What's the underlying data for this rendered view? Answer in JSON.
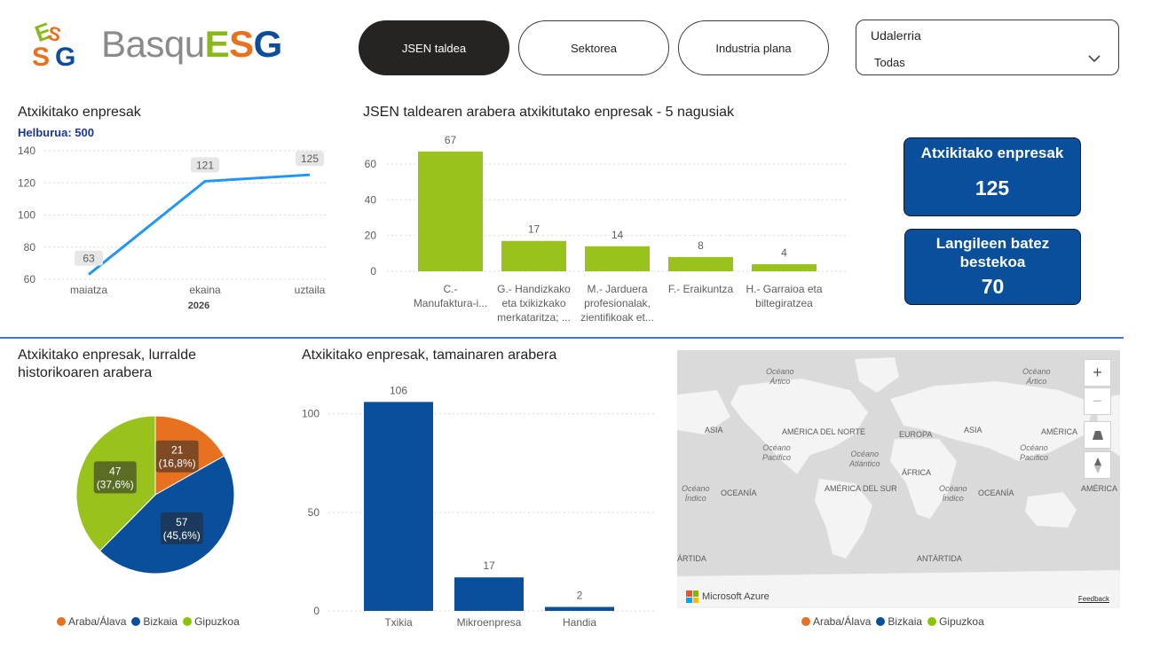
{
  "brand": {
    "logo_text_basqu": "Basqu",
    "logo_text_e": "E",
    "logo_text_s": "S",
    "logo_text_g": "G",
    "colors": {
      "green": "#8bb81f",
      "orange": "#e8711f",
      "blue": "#0d4d9c",
      "grey": "#8a8a8a"
    }
  },
  "nav": {
    "tabs": [
      {
        "label": "JSEN taldea",
        "active": true
      },
      {
        "label": "Sektorea",
        "active": false
      },
      {
        "label": "Industria plana",
        "active": false
      }
    ]
  },
  "slicer": {
    "title": "Udalerria",
    "value": "Todas",
    "icon": "chevron-down-icon"
  },
  "line_visual": {
    "title": "Atxikitako enpresak",
    "subtitle": "Helburua: 500"
  },
  "bar_visual": {
    "title": "JSEN taldearen arabera atxikitutako enpresak - 5 nagusiak"
  },
  "kpi": [
    {
      "title": "Atxikitako enpresak",
      "value": "125"
    },
    {
      "title_line1": "Langileen batez",
      "title_line2": "bestekoa",
      "value": "70"
    }
  ],
  "pie_visual": {
    "title_line1": "Atxikitako enpresak, lurralde",
    "title_line2": "historikoaren arabera"
  },
  "size_visual": {
    "title": "Atxikitako enpresak, tamainaren arabera"
  },
  "map": {
    "labels": {
      "ocean_artico_1": [
        "Océano",
        "Ártico"
      ],
      "ocean_artico_2": [
        "Océano",
        "Ártico"
      ],
      "asia_1": "ASIA",
      "america_norte": "AMÉRICA DEL NORTE",
      "europa": "EUROPA",
      "asia_2": "ASIA",
      "america_cut": "AMÉRICA",
      "ocean_pacifico_1": [
        "Océano",
        "Pacífico"
      ],
      "ocean_atlantico": [
        "Océano",
        "Atlántico"
      ],
      "ocean_pacifico_2": [
        "Océano",
        "Pacífico"
      ],
      "africa": "ÁFRICA",
      "ocean_indico_1": [
        "Océano",
        "Índico"
      ],
      "oceania_1": "OCEANÍA",
      "america_sur": "AMÉRICA DEL SUR",
      "ocean_indico_2": [
        "Océano",
        "Índico"
      ],
      "oceania_2": "OCEANÍA",
      "america_cut_2": "AMÉRICA",
      "antartida_1": "ÁRTIDA",
      "antartida_2": "ANTÁRTIDA"
    },
    "zoom_in": "+",
    "zoom_out": "−",
    "attribution": "Microsoft Azure",
    "feedback": "Feedback"
  },
  "legend": [
    {
      "label": "Araba/Álava",
      "color": "#e8711f"
    },
    {
      "label": "Bizkaia",
      "color": "#0a4f9c"
    },
    {
      "label": "Gipuzkoa",
      "color": "#8bc400"
    }
  ],
  "chart_data": [
    {
      "type": "line",
      "title": "Atxikitako enpresak",
      "subtitle": "Helburua: 500",
      "categories": [
        "maiatza",
        "ekaina",
        "uztaila"
      ],
      "x_group_label": "2026",
      "values": [
        63,
        121,
        125
      ],
      "ylim": [
        60,
        140
      ],
      "yticks": [
        60,
        80,
        100,
        120,
        140
      ],
      "color": "#2196f3",
      "grid": true
    },
    {
      "type": "bar",
      "title": "JSEN taldearen arabera atxikitutako enpresak - 5 nagusiak",
      "categories": [
        [
          "C.-",
          "Manufaktura-i..."
        ],
        [
          "G.- Handizkako",
          "eta txikizkako",
          "merkataritza; ..."
        ],
        [
          "M.- Jarduera",
          "profesionalak,",
          "zientifikoak et..."
        ],
        [
          "F.- Eraikuntza"
        ],
        [
          "H.- Garraioa eta",
          "biltegiratzea"
        ]
      ],
      "values": [
        67,
        17,
        14,
        8,
        4
      ],
      "ylim": [
        0,
        70
      ],
      "yticks": [
        0,
        20,
        40,
        60
      ],
      "color": "#99c21c",
      "grid": true
    },
    {
      "type": "pie",
      "title": "Atxikitako enpresak, lurralde historikoaren arabera",
      "slices": [
        {
          "name": "Araba/Álava",
          "value": 21,
          "label": "21",
          "pct": "(16,8%)",
          "color": "#e8711f"
        },
        {
          "name": "Bizkaia",
          "value": 57,
          "label": "57",
          "pct": "(45,6%)",
          "color": "#0a4f9c"
        },
        {
          "name": "Gipuzkoa",
          "value": 47,
          "label": "47",
          "pct": "(37,6%)",
          "color": "#99c21c"
        }
      ]
    },
    {
      "type": "bar",
      "title": "Atxikitako enpresak, tamainaren arabera",
      "categories": [
        "Txikia",
        "Mikroenpresa",
        "Handia"
      ],
      "values": [
        106,
        17,
        2
      ],
      "ylim": [
        0,
        110
      ],
      "yticks": [
        0,
        50,
        100
      ],
      "color": "#0a4f9c",
      "grid": true
    }
  ]
}
